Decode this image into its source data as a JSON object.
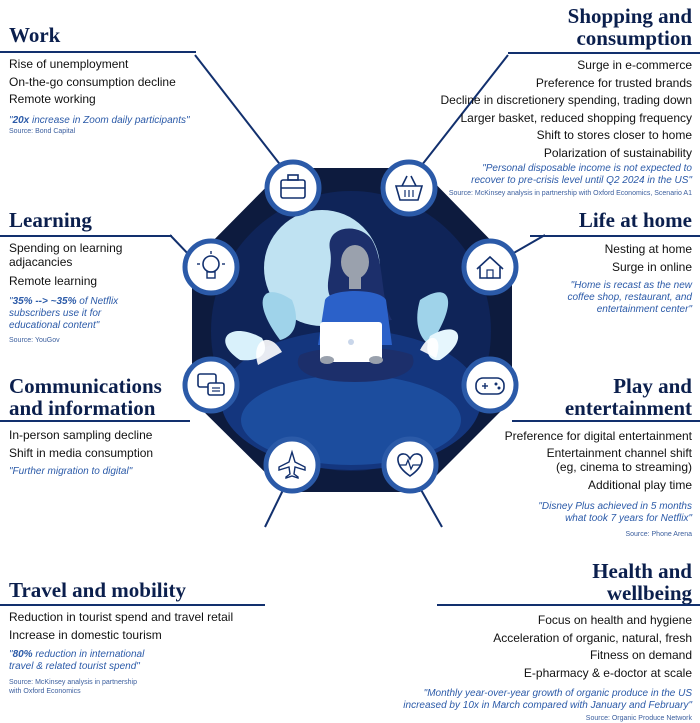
{
  "sections": {
    "work": {
      "title": "Work",
      "items": [
        "Rise of unemployment",
        "On-the-go consumption decline",
        "Remote working"
      ],
      "quote_strong": "20x",
      "quote_rest": " increase in Zoom daily participants\"",
      "quote_open": "\"",
      "source": "Source: Bond Capital"
    },
    "learning": {
      "title": "Learning",
      "items": [
        "Spending on learning",
        "adjacancies",
        "Remote learning"
      ],
      "quote_open": "\"",
      "quote_strong": "35% --> ~35%",
      "quote_rest": " of Netflix subscribers use it for educational content\"",
      "source": "Source: YouGov"
    },
    "communications": {
      "title_line1": "Communications",
      "title_line2": "and information",
      "items": [
        "In-person sampling decline",
        "Shift in media consumption"
      ],
      "quote": "\"Further migration to digital\""
    },
    "travel": {
      "title": "Travel and mobility",
      "items": [
        "Reduction in tourist spend and travel retail",
        "Increase in domestic tourism"
      ],
      "quote_open": "\"",
      "quote_strong": "80%",
      "quote_rest": " reduction in international travel &  related tourist spend\"",
      "source_line1": "Source: McKinsey analysis in partnership",
      "source_line2": "with Oxford Economics"
    },
    "shopping": {
      "title_line1": "Shopping and",
      "title_line2": "consumption",
      "items": [
        "Surge in e-commerce",
        "Preference for trusted brands",
        "Decline in discretionery spending, trading down",
        "Larger basket, reduced shopping frequency",
        "Shift to stores closer to home",
        "Polarization of sustainability"
      ],
      "quote_line1": "\"Personal disposable income is not expected to",
      "quote_line2": "recover to pre-crisis level until Q2 2024 in the US\"",
      "source": "Source: McKinsey analysis in partnership with Oxford Economics, Scenario A1"
    },
    "home": {
      "title": "Life at home",
      "items": [
        "Nesting at home",
        "Surge in online"
      ],
      "quote_line1": "\"Home is recast as the new",
      "quote_line2": "coffee shop, restaurant, and",
      "quote_line3": "entertainment center\""
    },
    "play": {
      "title_line1": "Play and",
      "title_line2": "entertainment",
      "items": [
        "Preference for digital entertainment",
        "Entertainment channel shift",
        "(eg, cinema to streaming)",
        "Additional play time"
      ],
      "quote_line1": "\"Disney Plus achieved in 5 months",
      "quote_line2": "what took 7 years for Netflix\"",
      "source": "Source: Phone Arena"
    },
    "health": {
      "title_line1": "Health and",
      "title_line2": "wellbeing",
      "items": [
        "Focus on health and hygiene",
        "Acceleration of organic, natural, fresh",
        "Fitness on demand",
        "E-pharmacy & e-doctor at scale"
      ],
      "quote_line1": "\"Monthly year-over-year growth of organic produce in the US",
      "quote_line2": "increased by 10x in March compared with January and February\"",
      "source": "Source: Organic Produce Network"
    }
  },
  "icons": [
    "briefcase-icon",
    "shopping-basket-icon",
    "lightbulb-icon",
    "house-icon",
    "chat-icon",
    "gamepad-icon",
    "airplane-icon",
    "heartbeat-icon"
  ],
  "colors": {
    "navy": "#0b1f4d",
    "hub": "#0d1b3e",
    "accent": "#2b5aa8"
  }
}
